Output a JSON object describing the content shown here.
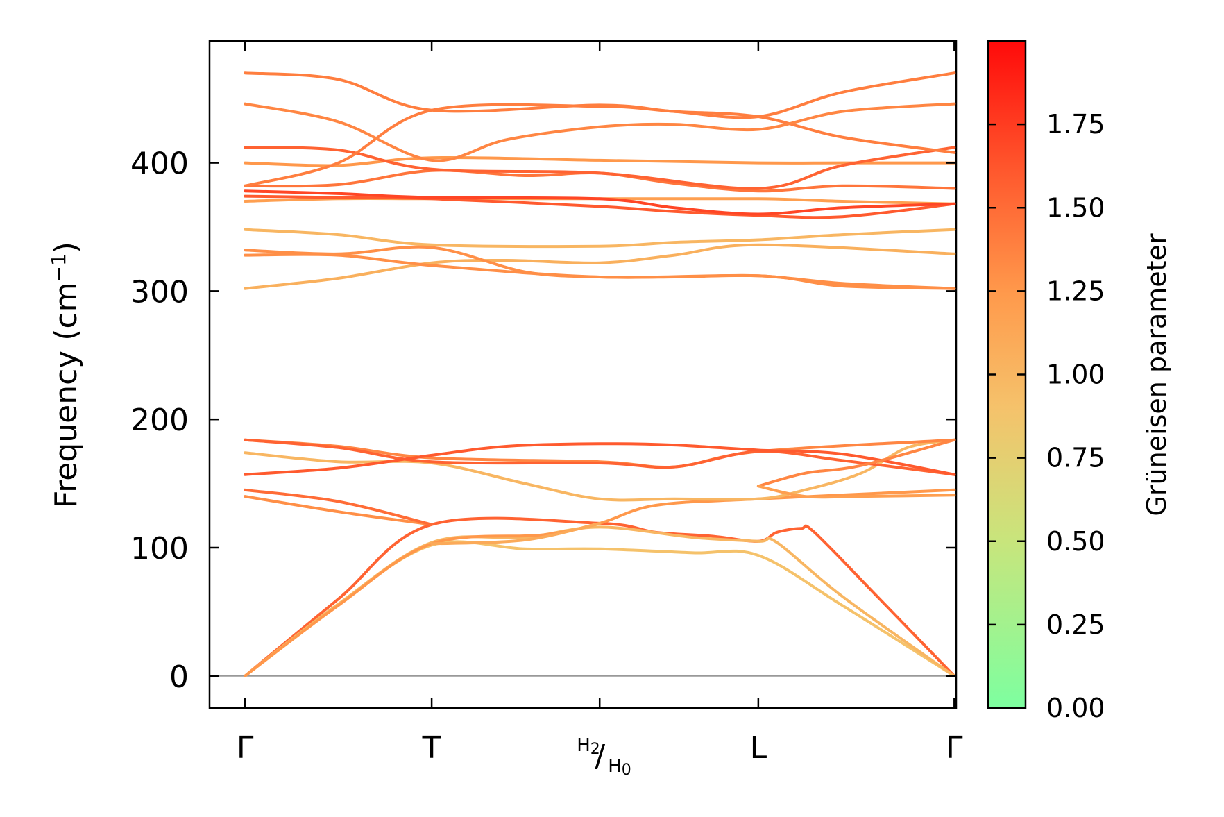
{
  "chart_data": {
    "type": "line",
    "title": "",
    "xlabel": "",
    "ylabel": "Frequency (cm⁻¹)",
    "ylabel_main": "Frequency (cm",
    "ylabel_sup": "−1",
    "ylabel_close": ")",
    "ylim": [
      -25,
      495
    ],
    "yticks": [
      0,
      100,
      200,
      300,
      400
    ],
    "ytick_labels": [
      "0",
      "100",
      "200",
      "300",
      "400"
    ],
    "xlim": [
      -0.19,
      3.81
    ],
    "xticks": [
      0,
      1,
      1.9,
      2.75,
      3.8
    ],
    "xtick_labels": [
      "Γ",
      "T",
      "H2/H0",
      "L",
      "Γ"
    ],
    "special_label": {
      "top": "H",
      "top_sub": "2",
      "slash": "/",
      "bottom": "H",
      "bottom_sub": "0"
    },
    "zero_line": 0,
    "colorbar": {
      "label": "Grüneisen parameter",
      "range": [
        0,
        2
      ],
      "ticks": [
        0.0,
        0.25,
        0.5,
        0.75,
        1.0,
        1.25,
        1.5,
        1.75
      ],
      "tick_labels": [
        "0.00",
        "0.25",
        "0.50",
        "0.75",
        "1.00",
        "1.25",
        "1.50",
        "1.75"
      ],
      "colors": [
        "#7dffa0",
        "#b6f08a",
        "#f5c26b",
        "#ff9a4c",
        "#ff5a2e",
        "#ff0a0a"
      ]
    },
    "series": [
      {
        "name": "band-01",
        "gamma": 1.55,
        "points": [
          [
            0,
            0
          ],
          [
            0.5,
            60
          ],
          [
            1,
            118
          ],
          [
            1.9,
            119
          ],
          [
            2.2,
            112
          ],
          [
            2.5,
            109
          ],
          [
            2.75,
            105
          ],
          [
            2.85,
            112
          ],
          [
            2.98,
            115
          ],
          [
            3.05,
            112
          ],
          [
            3.4,
            60
          ],
          [
            3.8,
            0
          ]
        ]
      },
      {
        "name": "band-02",
        "gamma": 0.9,
        "points": [
          [
            0,
            0
          ],
          [
            0.5,
            56
          ],
          [
            1,
            102
          ],
          [
            1.5,
            99
          ],
          [
            1.9,
            99
          ],
          [
            2.4,
            96
          ],
          [
            2.75,
            94
          ],
          [
            3.2,
            55
          ],
          [
            3.8,
            0
          ]
        ]
      },
      {
        "name": "band-03",
        "gamma": 1.0,
        "points": [
          [
            0,
            0
          ],
          [
            0.5,
            56
          ],
          [
            1,
            104
          ],
          [
            1.5,
            108
          ],
          [
            1.9,
            116
          ],
          [
            2.4,
            108
          ],
          [
            2.75,
            105
          ],
          [
            2.85,
            104
          ],
          [
            3.2,
            62
          ],
          [
            3.8,
            0
          ]
        ]
      },
      {
        "name": "band-04",
        "gamma": 1.25,
        "points": [
          [
            0,
            0
          ],
          [
            0.5,
            55
          ],
          [
            1,
            103
          ],
          [
            1.6,
            110
          ],
          [
            1.9,
            119
          ],
          [
            2.2,
            133
          ],
          [
            2.75,
            138
          ],
          [
            3.8,
            145
          ]
        ]
      },
      {
        "name": "band-05",
        "gamma": 1.3,
        "points": [
          [
            0,
            140
          ],
          [
            0.5,
            128
          ],
          [
            1,
            118
          ]
        ]
      },
      {
        "name": "band-06",
        "gamma": 1.5,
        "points": [
          [
            0,
            145
          ],
          [
            0.5,
            136
          ],
          [
            1,
            118
          ]
        ]
      },
      {
        "name": "band-07",
        "gamma": 1.1,
        "points": [
          [
            1,
            103
          ],
          [
            1.5,
            106
          ],
          [
            1.9,
            119
          ]
        ]
      },
      {
        "name": "band-08",
        "gamma": 1.0,
        "points": [
          [
            0,
            174
          ],
          [
            0.5,
            167
          ],
          [
            1,
            166
          ],
          [
            1.5,
            150
          ],
          [
            1.9,
            138
          ],
          [
            2.3,
            138
          ],
          [
            2.75,
            138
          ],
          [
            3.0,
            145
          ],
          [
            3.3,
            158
          ],
          [
            3.55,
            178
          ],
          [
            3.8,
            184
          ]
        ]
      },
      {
        "name": "band-09",
        "gamma": 1.35,
        "points": [
          [
            0,
            184
          ],
          [
            0.5,
            179
          ],
          [
            1,
            170
          ],
          [
            1.9,
            167
          ],
          [
            2.3,
            163
          ],
          [
            2.75,
            175
          ],
          [
            3.8,
            184
          ]
        ]
      },
      {
        "name": "band-10",
        "gamma": 1.55,
        "points": [
          [
            0,
            184
          ],
          [
            0.5,
            178
          ],
          [
            1,
            167
          ],
          [
            1.9,
            166
          ],
          [
            2.3,
            163
          ],
          [
            2.75,
            175
          ],
          [
            3.2,
            168
          ],
          [
            3.8,
            157
          ]
        ]
      },
      {
        "name": "band-11",
        "gamma": 1.6,
        "points": [
          [
            0,
            157
          ],
          [
            0.5,
            162
          ],
          [
            1,
            172
          ],
          [
            1.4,
            179
          ],
          [
            1.9,
            181
          ],
          [
            2.3,
            180
          ],
          [
            2.75,
            176
          ],
          [
            3.2,
            173
          ],
          [
            3.8,
            157
          ]
        ]
      },
      {
        "name": "band-12",
        "gamma": 1.35,
        "points": [
          [
            2.75,
            148
          ],
          [
            3.0,
            158
          ],
          [
            3.3,
            164
          ],
          [
            3.8,
            184
          ]
        ]
      },
      {
        "name": "band-13",
        "gamma": 1.2,
        "points": [
          [
            2.75,
            148
          ],
          [
            3.0,
            140
          ],
          [
            3.3,
            140
          ],
          [
            3.8,
            141
          ]
        ]
      },
      {
        "name": "band-14",
        "gamma": 1.05,
        "points": [
          [
            0,
            302
          ],
          [
            0.5,
            310
          ],
          [
            1,
            322
          ],
          [
            1.4,
            324
          ],
          [
            1.9,
            322
          ],
          [
            2.3,
            328
          ],
          [
            2.75,
            336
          ],
          [
            3.8,
            329
          ]
        ]
      },
      {
        "name": "band-15",
        "gamma": 1.0,
        "points": [
          [
            0,
            348
          ],
          [
            0.5,
            344
          ],
          [
            1,
            336
          ],
          [
            1.9,
            335
          ],
          [
            2.3,
            338
          ],
          [
            2.75,
            340
          ],
          [
            3.2,
            344
          ],
          [
            3.8,
            348
          ]
        ]
      },
      {
        "name": "band-16",
        "gamma": 1.3,
        "points": [
          [
            0,
            332
          ],
          [
            0.5,
            329
          ],
          [
            1,
            334
          ],
          [
            1.5,
            315
          ],
          [
            1.9,
            311
          ],
          [
            2.3,
            311
          ],
          [
            2.75,
            312
          ],
          [
            3.2,
            306
          ],
          [
            3.8,
            302
          ]
        ]
      },
      {
        "name": "band-17",
        "gamma": 1.3,
        "points": [
          [
            0,
            328
          ],
          [
            0.5,
            328
          ],
          [
            1,
            320
          ],
          [
            1.9,
            311
          ],
          [
            2.75,
            312
          ],
          [
            3.2,
            304
          ],
          [
            3.8,
            302
          ]
        ]
      },
      {
        "name": "band-18",
        "gamma": 1.2,
        "points": [
          [
            0,
            370
          ],
          [
            0.5,
            372
          ],
          [
            1,
            372
          ],
          [
            1.9,
            372
          ],
          [
            2.75,
            372
          ],
          [
            3.2,
            370
          ],
          [
            3.8,
            368
          ]
        ]
      },
      {
        "name": "band-19",
        "gamma": 1.6,
        "points": [
          [
            0,
            374
          ],
          [
            0.5,
            373
          ],
          [
            1,
            372
          ],
          [
            1.9,
            366
          ],
          [
            2.3,
            362
          ],
          [
            2.75,
            359
          ],
          [
            3.2,
            358
          ],
          [
            3.8,
            368
          ]
        ]
      },
      {
        "name": "band-20",
        "gamma": 1.7,
        "points": [
          [
            0,
            378
          ],
          [
            0.5,
            376
          ],
          [
            1,
            373
          ],
          [
            1.9,
            372
          ],
          [
            2.3,
            365
          ],
          [
            2.75,
            360
          ],
          [
            3.2,
            365
          ],
          [
            3.8,
            368
          ]
        ]
      },
      {
        "name": "band-21",
        "gamma": 1.45,
        "points": [
          [
            0,
            382
          ],
          [
            0.5,
            383
          ],
          [
            1,
            394
          ],
          [
            1.5,
            390
          ],
          [
            1.9,
            392
          ],
          [
            2.3,
            384
          ],
          [
            2.75,
            378
          ],
          [
            3.2,
            382
          ],
          [
            3.8,
            380
          ]
        ]
      },
      {
        "name": "band-22",
        "gamma": 1.25,
        "points": [
          [
            0,
            400
          ],
          [
            0.5,
            398
          ],
          [
            1,
            404
          ],
          [
            1.9,
            402
          ],
          [
            2.75,
            400
          ],
          [
            3.2,
            400
          ],
          [
            3.8,
            400
          ]
        ]
      },
      {
        "name": "band-23",
        "gamma": 1.55,
        "points": [
          [
            0,
            412
          ],
          [
            0.5,
            410
          ],
          [
            1,
            395
          ],
          [
            1.9,
            392
          ],
          [
            2.75,
            380
          ],
          [
            3.2,
            398
          ],
          [
            3.8,
            412
          ]
        ]
      },
      {
        "name": "band-24",
        "gamma": 1.4,
        "points": [
          [
            0,
            382
          ],
          [
            0.5,
            400
          ],
          [
            1,
            441
          ],
          [
            1.9,
            444
          ],
          [
            2.3,
            440
          ],
          [
            2.75,
            436
          ],
          [
            3.2,
            420
          ],
          [
            3.8,
            408
          ]
        ]
      },
      {
        "name": "band-25",
        "gamma": 1.35,
        "points": [
          [
            0,
            446
          ],
          [
            0.5,
            432
          ],
          [
            1,
            402
          ],
          [
            1.4,
            418
          ],
          [
            1.9,
            428
          ],
          [
            2.3,
            430
          ],
          [
            2.75,
            426
          ],
          [
            3.2,
            440
          ],
          [
            3.8,
            446
          ]
        ]
      },
      {
        "name": "band-26",
        "gamma": 1.4,
        "points": [
          [
            0,
            470
          ],
          [
            0.5,
            465
          ],
          [
            1,
            441
          ],
          [
            1.9,
            445
          ],
          [
            2.3,
            440
          ],
          [
            2.75,
            436
          ],
          [
            3.2,
            455
          ],
          [
            3.8,
            470
          ]
        ]
      }
    ]
  }
}
